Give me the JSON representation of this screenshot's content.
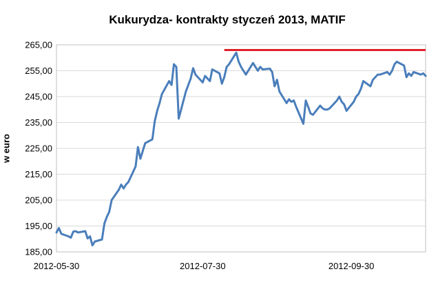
{
  "chart_data": {
    "type": "line",
    "title": "Kukurydza- kontrakty styczeń 2013, MATIF",
    "ylabel": "w euro",
    "xlabel": "",
    "ylim": [
      185,
      265
    ],
    "yticks": [
      "185,00",
      "195,00",
      "205,00",
      "215,00",
      "225,00",
      "235,00",
      "245,00",
      "255,00",
      "265,00"
    ],
    "yticks_values": [
      185,
      195,
      205,
      215,
      225,
      235,
      245,
      255,
      265
    ],
    "xlim": [
      "2012-05-30",
      "2012-10-31"
    ],
    "xticks": [
      "2012-05-30",
      "2012-07-30",
      "2012-09-30"
    ],
    "grid": "horizontal",
    "colors": {
      "series": "#4a7ebb",
      "reference": "#e0202a",
      "grid": "#d9d9d9",
      "frame": "#bfbfbf"
    },
    "reference_line": {
      "x_start": "2012-08-08",
      "x_end": "2012-10-31",
      "y": 263
    },
    "series": [
      {
        "x": [
          "2012-05-30",
          "2012-05-31",
          "2012-06-01",
          "2012-06-04",
          "2012-06-05",
          "2012-06-06",
          "2012-06-07",
          "2012-06-08",
          "2012-06-11",
          "2012-06-12",
          "2012-06-13",
          "2012-06-14",
          "2012-06-15",
          "2012-06-18",
          "2012-06-19",
          "2012-06-20",
          "2012-06-21",
          "2012-06-22",
          "2012-06-25",
          "2012-06-26",
          "2012-06-27",
          "2012-06-28",
          "2012-06-29",
          "2012-07-02",
          "2012-07-03",
          "2012-07-04",
          "2012-07-05",
          "2012-07-06",
          "2012-07-09",
          "2012-07-10",
          "2012-07-11",
          "2012-07-12",
          "2012-07-13",
          "2012-07-16",
          "2012-07-17",
          "2012-07-18",
          "2012-07-19",
          "2012-07-20",
          "2012-07-23",
          "2012-07-24",
          "2012-07-25",
          "2012-07-26",
          "2012-07-27",
          "2012-07-30",
          "2012-07-31",
          "2012-08-01",
          "2012-08-02",
          "2012-08-03",
          "2012-08-06",
          "2012-08-07",
          "2012-08-08",
          "2012-08-09",
          "2012-08-10",
          "2012-08-13",
          "2012-08-14",
          "2012-08-15",
          "2012-08-16",
          "2012-08-17",
          "2012-08-20",
          "2012-08-21",
          "2012-08-22",
          "2012-08-23",
          "2012-08-24",
          "2012-08-27",
          "2012-08-28",
          "2012-08-29",
          "2012-08-30",
          "2012-08-31",
          "2012-09-03",
          "2012-09-04",
          "2012-09-05",
          "2012-09-06",
          "2012-09-07",
          "2012-09-10",
          "2012-09-11",
          "2012-09-12",
          "2012-09-13",
          "2012-09-14",
          "2012-09-17",
          "2012-09-18",
          "2012-09-19",
          "2012-09-20",
          "2012-09-21",
          "2012-09-24",
          "2012-09-25",
          "2012-09-26",
          "2012-09-27",
          "2012-09-28",
          "2012-10-01",
          "2012-10-02",
          "2012-10-03",
          "2012-10-04",
          "2012-10-05",
          "2012-10-08",
          "2012-10-09",
          "2012-10-10",
          "2012-10-11",
          "2012-10-12",
          "2012-10-15",
          "2012-10-16",
          "2012-10-17",
          "2012-10-18",
          "2012-10-19",
          "2012-10-22",
          "2012-10-23",
          "2012-10-24",
          "2012-10-25",
          "2012-10-26",
          "2012-10-29",
          "2012-10-30",
          "2012-10-31"
        ],
        "values": [
          192.5,
          194.2,
          192.0,
          191.0,
          190.5,
          192.8,
          193.0,
          192.5,
          193.0,
          190.2,
          191.0,
          187.5,
          189.0,
          189.8,
          196.0,
          198.5,
          200.5,
          205.0,
          209.0,
          211.0,
          209.5,
          211.0,
          212.0,
          218.0,
          225.5,
          221.0,
          224.0,
          227.0,
          228.5,
          235.5,
          239.5,
          242.5,
          246.0,
          251.0,
          249.5,
          257.5,
          256.5,
          236.5,
          247.0,
          249.5,
          252.0,
          256.0,
          253.5,
          250.5,
          253.0,
          252.0,
          251.0,
          255.5,
          254.0,
          250.0,
          252.5,
          256.5,
          257.5,
          262.0,
          258.5,
          256.5,
          255.0,
          253.5,
          258.0,
          256.5,
          255.0,
          256.5,
          255.5,
          255.8,
          254.5,
          249.0,
          251.5,
          247.0,
          242.5,
          244.0,
          243.0,
          243.5,
          241.0,
          234.5,
          243.5,
          241.0,
          238.5,
          238.0,
          241.5,
          240.5,
          240.0,
          240.0,
          240.5,
          243.5,
          245.0,
          243.0,
          242.0,
          239.5,
          243.0,
          245.0,
          246.0,
          248.0,
          251.0,
          249.0,
          251.5,
          252.5,
          253.5,
          253.5,
          254.5,
          253.5,
          255.0,
          257.5,
          258.5,
          257.0,
          252.5,
          254.0,
          253.0,
          254.5,
          253.5,
          254.0,
          253.0
        ]
      }
    ]
  }
}
